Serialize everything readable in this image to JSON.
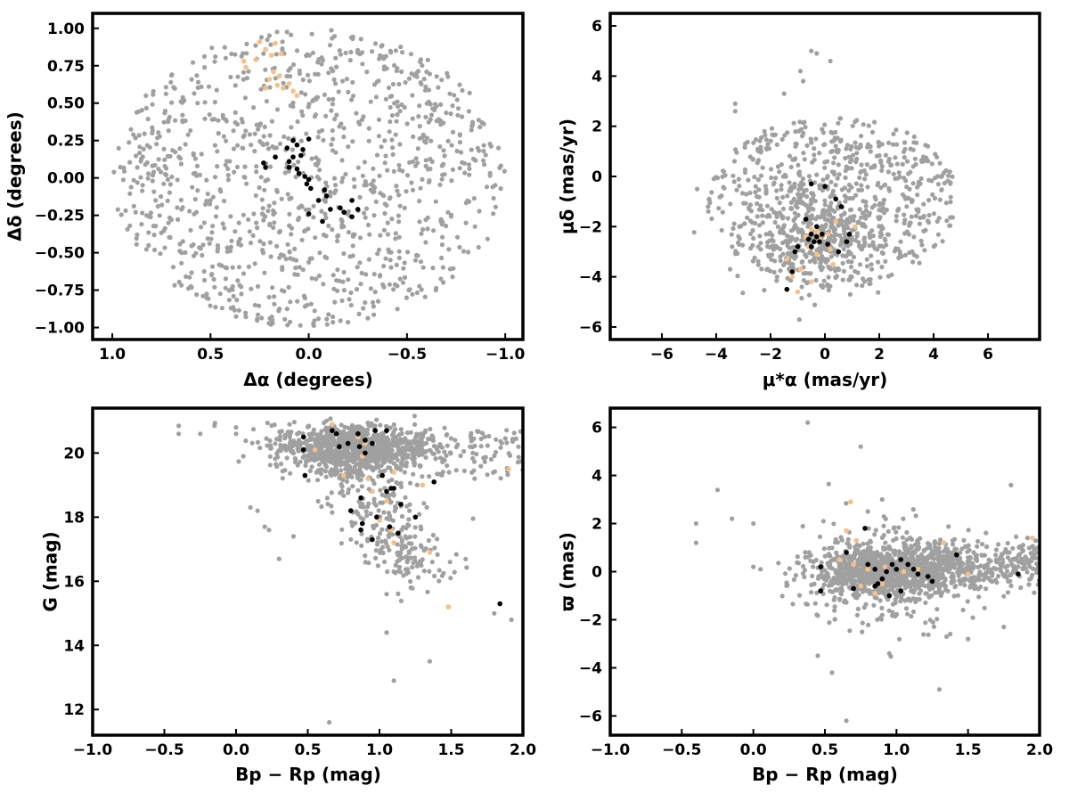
{
  "colors": {
    "field": "#a0a0a0",
    "member_orange": "#f6c088",
    "member_black": "#000000",
    "axis": "#000000"
  },
  "chart_data": [
    {
      "type": "scatter",
      "id": "position",
      "xlabel": "Δα (degrees)",
      "ylabel": "Δδ (degrees)",
      "xlim": [
        1.1,
        -1.09
      ],
      "ylim": [
        -1.08,
        1.1
      ],
      "x_inverted": true,
      "xticks": [
        1.0,
        0.5,
        0.0,
        -0.5,
        -1.0
      ],
      "xtick_labels": [
        "1.0",
        "0.5",
        "0.0",
        "−0.5",
        "−1.0"
      ],
      "yticks": [
        -1.0,
        -0.75,
        -0.5,
        -0.25,
        0.0,
        0.25,
        0.5,
        0.75,
        1.0
      ],
      "ytick_labels": [
        "−1.00",
        "−0.75",
        "−0.50",
        "−0.25",
        "0.00",
        "0.25",
        "0.50",
        "0.75",
        "1.00"
      ],
      "grid": false,
      "field_distribution": {
        "shape": "ellipse",
        "center": [
          0.0,
          0.0
        ],
        "radius": [
          1.0,
          1.0
        ],
        "count": 1100
      },
      "series": [
        {
          "color": "#f6c088",
          "points": [
            [
              0.17,
              0.9
            ],
            [
              0.25,
              0.91
            ],
            [
              0.22,
              0.86
            ],
            [
              0.14,
              0.83
            ],
            [
              0.19,
              0.82
            ],
            [
              0.27,
              0.79
            ],
            [
              0.33,
              0.78
            ],
            [
              0.32,
              0.74
            ],
            [
              0.18,
              0.71
            ],
            [
              0.15,
              0.68
            ],
            [
              0.2,
              0.66
            ],
            [
              0.1,
              0.63
            ],
            [
              0.13,
              0.6
            ],
            [
              0.16,
              0.62
            ],
            [
              0.08,
              0.58
            ],
            [
              0.22,
              0.6
            ],
            [
              0.06,
              0.55
            ]
          ]
        },
        {
          "color": "#000000",
          "points": [
            [
              0.0,
              0.26
            ],
            [
              0.08,
              0.25
            ],
            [
              0.06,
              0.22
            ],
            [
              0.11,
              0.2
            ],
            [
              0.03,
              0.19
            ],
            [
              0.04,
              0.15
            ],
            [
              0.08,
              0.14
            ],
            [
              0.17,
              0.14
            ],
            [
              0.1,
              0.11
            ],
            [
              0.23,
              0.1
            ],
            [
              0.22,
              0.07
            ],
            [
              0.1,
              0.07
            ],
            [
              0.06,
              0.06
            ],
            [
              0.05,
              0.03
            ],
            [
              0.02,
              0.01
            ],
            [
              0.0,
              -0.01
            ],
            [
              0.01,
              -0.04
            ],
            [
              -0.01,
              -0.07
            ],
            [
              -0.08,
              -0.08
            ],
            [
              -0.09,
              -0.12
            ],
            [
              -0.05,
              -0.15
            ],
            [
              -0.22,
              -0.15
            ],
            [
              -0.16,
              -0.2
            ],
            [
              -0.11,
              -0.21
            ],
            [
              -0.18,
              -0.23
            ],
            [
              -0.25,
              -0.21
            ],
            [
              0.0,
              -0.24
            ],
            [
              -0.22,
              -0.26
            ],
            [
              -0.07,
              -0.29
            ]
          ]
        }
      ]
    },
    {
      "type": "scatter",
      "id": "proper-motion",
      "xlabel": "μ*α (mas/yr)",
      "ylabel": "μδ (mas/yr)",
      "xlim": [
        -7.9,
        7.9
      ],
      "ylim": [
        -6.5,
        6.5
      ],
      "xticks": [
        -6,
        -4,
        -2,
        0,
        2,
        4,
        6
      ],
      "xtick_labels": [
        "−6",
        "−4",
        "−2",
        "0",
        "2",
        "4",
        "6"
      ],
      "yticks": [
        -6,
        -4,
        -2,
        0,
        2,
        4,
        6
      ],
      "ytick_labels": [
        "−6",
        "−4",
        "−2",
        "0",
        "2",
        "4",
        "6"
      ],
      "grid": false,
      "field_distribution": {
        "shape": "ellipse",
        "center": [
          0.3,
          -1.0
        ],
        "radius": [
          4.6,
          3.4
        ],
        "count": 1000
      },
      "series": [
        {
          "color": "#f6c088",
          "points": [
            [
              -0.5,
              -2.1
            ],
            [
              -0.3,
              -2.2
            ],
            [
              -0.7,
              -2.4
            ],
            [
              -0.4,
              -2.6
            ],
            [
              -0.2,
              -2.5
            ],
            [
              0.1,
              -2.3
            ],
            [
              -0.6,
              -2.8
            ],
            [
              0.2,
              -2.9
            ],
            [
              -1.4,
              -3.3
            ],
            [
              -0.3,
              -3.1
            ],
            [
              0.3,
              -3.5
            ],
            [
              -0.9,
              -3.7
            ],
            [
              -1.2,
              -4.0
            ],
            [
              -0.5,
              -4.2
            ],
            [
              -1.0,
              -4.6
            ],
            [
              1.1,
              -2.0
            ],
            [
              0.4,
              -1.8
            ]
          ]
        },
        {
          "color": "#000000",
          "points": [
            [
              -0.5,
              -0.3
            ],
            [
              0.0,
              -0.4
            ],
            [
              0.4,
              -0.9
            ],
            [
              0.6,
              -1.2
            ],
            [
              -0.7,
              -1.7
            ],
            [
              -0.3,
              -2.0
            ],
            [
              -0.5,
              -2.3
            ],
            [
              -0.3,
              -2.4
            ],
            [
              -0.1,
              -2.3
            ],
            [
              -0.6,
              -2.5
            ],
            [
              -0.4,
              -2.6
            ],
            [
              -0.2,
              -2.6
            ],
            [
              -0.5,
              -2.8
            ],
            [
              0.1,
              -2.7
            ],
            [
              -1.0,
              -2.8
            ],
            [
              -1.1,
              -3.0
            ],
            [
              0.5,
              -3.0
            ],
            [
              0.8,
              -2.6
            ],
            [
              0.9,
              -2.3
            ],
            [
              -1.4,
              -4.5
            ],
            [
              -1.2,
              -3.8
            ]
          ]
        }
      ]
    },
    {
      "type": "scatter",
      "id": "cmd",
      "xlabel": "Bp − Rp (mag)",
      "ylabel": "G (mag)",
      "xlim": [
        -1.0,
        2.0
      ],
      "ylim": [
        11.2,
        21.4
      ],
      "xticks": [
        -1.0,
        -0.5,
        0.0,
        0.5,
        1.0,
        1.5,
        2.0
      ],
      "xtick_labels": [
        "−1.0",
        "−0.5",
        "0.0",
        "0.5",
        "1.0",
        "1.5",
        "2.0"
      ],
      "yticks": [
        12,
        14,
        16,
        18,
        20
      ],
      "ytick_labels": [
        "12",
        "14",
        "16",
        "18",
        "20"
      ],
      "grid": false,
      "series": [
        {
          "color": "#f6c088",
          "points": [
            [
              0.67,
              20.9
            ],
            [
              0.7,
              20.6
            ],
            [
              0.85,
              20.5
            ],
            [
              0.9,
              20.3
            ],
            [
              0.55,
              20.1
            ],
            [
              0.88,
              19.9
            ],
            [
              0.75,
              19.3
            ],
            [
              0.92,
              19.2
            ],
            [
              1.1,
              19.4
            ],
            [
              1.3,
              19.0
            ],
            [
              0.95,
              18.8
            ],
            [
              1.05,
              18.5
            ],
            [
              1.0,
              17.9
            ],
            [
              1.08,
              17.6
            ],
            [
              1.1,
              17.2
            ],
            [
              1.35,
              16.9
            ],
            [
              1.48,
              15.2
            ],
            [
              1.9,
              19.5
            ]
          ]
        },
        {
          "color": "#000000",
          "points": [
            [
              0.47,
              20.5
            ],
            [
              0.67,
              20.7
            ],
            [
              0.7,
              20.6
            ],
            [
              0.85,
              20.6
            ],
            [
              0.97,
              20.7
            ],
            [
              1.05,
              20.7
            ],
            [
              0.9,
              20.4
            ],
            [
              0.95,
              20.3
            ],
            [
              0.72,
              20.2
            ],
            [
              0.78,
              20.3
            ],
            [
              0.86,
              20.2
            ],
            [
              0.47,
              20.1
            ],
            [
              0.9,
              20.0
            ],
            [
              0.48,
              19.3
            ],
            [
              1.02,
              19.3
            ],
            [
              1.38,
              19.1
            ],
            [
              1.1,
              18.9
            ],
            [
              1.05,
              18.8
            ],
            [
              1.08,
              18.9
            ],
            [
              0.87,
              18.6
            ],
            [
              1.15,
              18.4
            ],
            [
              0.8,
              18.2
            ],
            [
              1.25,
              18.0
            ],
            [
              0.98,
              18.0
            ],
            [
              0.88,
              17.8
            ],
            [
              1.07,
              17.7
            ],
            [
              0.87,
              17.6
            ],
            [
              1.13,
              17.5
            ],
            [
              0.95,
              17.3
            ],
            [
              1.84,
              15.3
            ]
          ]
        }
      ]
    },
    {
      "type": "scatter",
      "id": "parallax",
      "xlabel": "Bp − Rp (mag)",
      "ylabel": "ϖ (mas)",
      "xlim": [
        -1.0,
        2.0
      ],
      "ylim": [
        -6.8,
        6.8
      ],
      "xticks": [
        -1.0,
        -0.5,
        0.0,
        0.5,
        1.0,
        1.5,
        2.0
      ],
      "xtick_labels": [
        "−1.0",
        "−0.5",
        "0.0",
        "0.5",
        "1.0",
        "1.5",
        "2.0"
      ],
      "yticks": [
        -6,
        -4,
        -2,
        0,
        2,
        4,
        6
      ],
      "ytick_labels": [
        "−6",
        "−4",
        "−2",
        "0",
        "2",
        "4",
        "6"
      ],
      "grid": false,
      "series": [
        {
          "color": "#f6c088",
          "points": [
            [
              0.68,
              2.9
            ],
            [
              0.65,
              1.7
            ],
            [
              0.72,
              1.3
            ],
            [
              1.33,
              1.2
            ],
            [
              1.95,
              1.4
            ],
            [
              0.6,
              0.5
            ],
            [
              0.7,
              0.3
            ],
            [
              0.8,
              0.1
            ],
            [
              0.92,
              0.2
            ],
            [
              1.05,
              0.0
            ],
            [
              1.15,
              0.1
            ],
            [
              0.9,
              -0.5
            ],
            [
              0.75,
              -0.6
            ],
            [
              1.5,
              -0.1
            ],
            [
              0.85,
              -0.9
            ]
          ]
        },
        {
          "color": "#000000",
          "points": [
            [
              0.47,
              0.2
            ],
            [
              0.65,
              0.8
            ],
            [
              0.78,
              1.8
            ],
            [
              0.8,
              0.3
            ],
            [
              0.85,
              0.1
            ],
            [
              0.9,
              -0.3
            ],
            [
              0.93,
              0.0
            ],
            [
              0.97,
              0.3
            ],
            [
              1.0,
              0.1
            ],
            [
              1.03,
              0.5
            ],
            [
              1.08,
              0.3
            ],
            [
              1.12,
              0.1
            ],
            [
              1.15,
              -0.1
            ],
            [
              1.22,
              -0.2
            ],
            [
              1.25,
              -0.4
            ],
            [
              0.7,
              -0.7
            ],
            [
              0.85,
              -0.6
            ],
            [
              0.87,
              -0.5
            ],
            [
              1.03,
              -0.8
            ],
            [
              0.95,
              -1.0
            ],
            [
              1.42,
              0.7
            ],
            [
              1.85,
              -0.1
            ],
            [
              0.47,
              -0.8
            ]
          ]
        }
      ]
    }
  ]
}
